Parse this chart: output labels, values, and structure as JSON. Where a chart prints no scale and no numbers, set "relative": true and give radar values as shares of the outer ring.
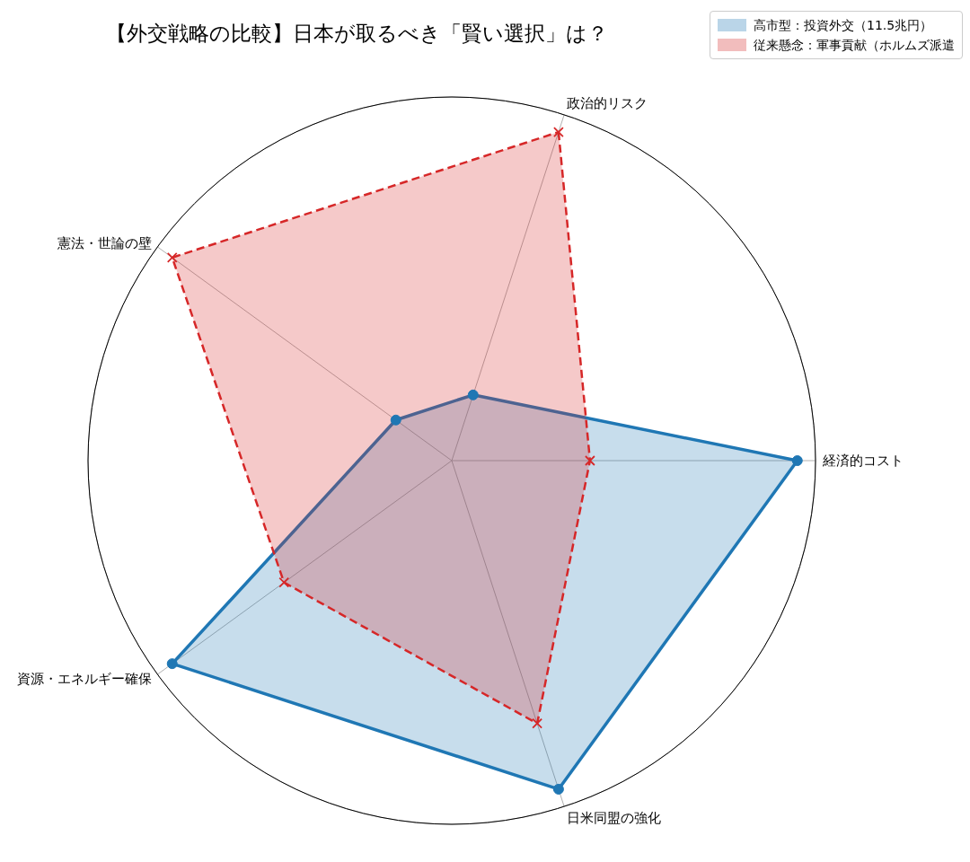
{
  "chart_data": {
    "type": "radar",
    "title": "【外交戦略の比較】日本が取るべき「賢い選択」は？",
    "relative": true,
    "grid": true,
    "legend": "top right",
    "categories": [
      "政治的リスク",
      "経済的コスト",
      "日米同盟の強化",
      "資源・エネルギー確保",
      "憲法・世論の壁"
    ],
    "series": [
      {
        "name": "高市型：投資外交（11.5兆円）",
        "color": "#1f77b4",
        "marker": "circle",
        "line_style": "solid",
        "values": [
          0.19,
          0.95,
          0.95,
          0.95,
          0.19
        ]
      },
      {
        "name": "従来懸念：軍事貢献（ホルムズ派遣",
        "color": "#d62728",
        "marker": "cross",
        "line_style": "dashed",
        "values": [
          0.95,
          0.38,
          0.76,
          0.57,
          0.95
        ]
      }
    ]
  }
}
